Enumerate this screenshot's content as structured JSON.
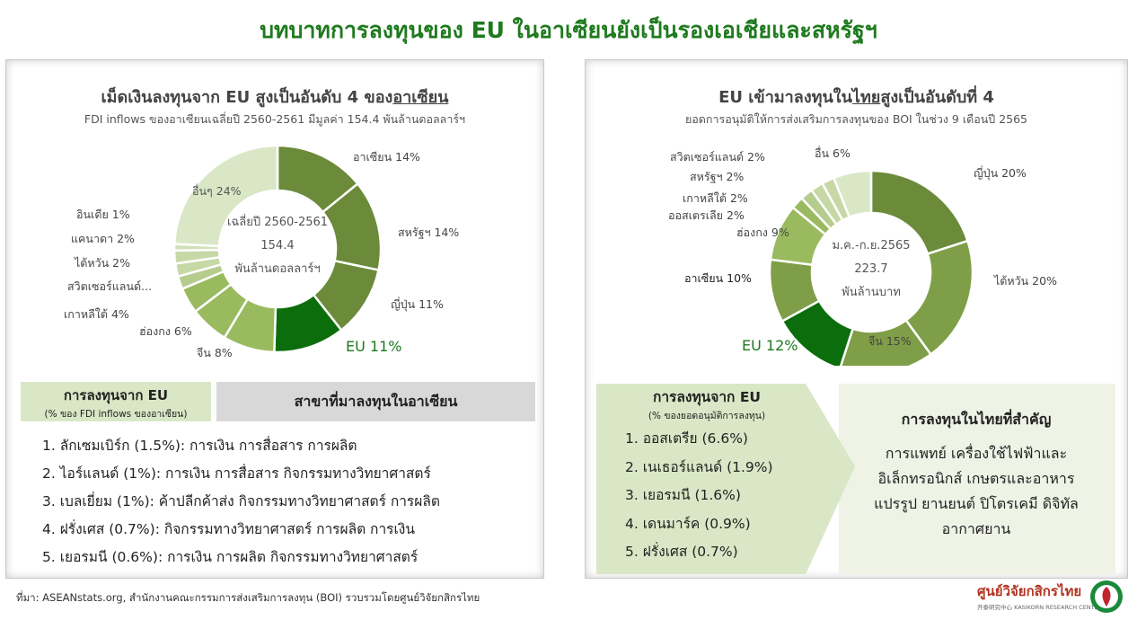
{
  "main_title": "บทบาทการลงทุนของ EU ในอาเซียนยังเป็นรองเอเชียและสหรัฐฯ",
  "left": {
    "title_pre": "เม็ดเงินลงทุนจาก EU สูงเป็นอันดับ 4 ของ",
    "title_underline": "อาเซียน",
    "subtitle": "FDI inflows ของอาเซียนเฉลี่ยปี 2560-2561  มีมูลค่า 154.4  พันล้านดอลลาร์ฯ",
    "center_lines": [
      "เฉลี่ยปี 2560-2561",
      "154.4",
      "พันล้านดอลลาร์ฯ"
    ],
    "box_green_title": "การลงทุนจาก EU",
    "box_green_sub": "(% ของ FDI inflows ของอาเซียน)",
    "box_gray_title": "สาขาที่มาลงทุนในอาเซียน",
    "branches": [
      "1. ลักเซมเบิร์ก (1.5%): การเงิน การสื่อสาร การผลิต",
      "2. ไอร์แลนด์ (1%): การเงิน การสื่อสาร กิจกรรมทางวิทยาศาสตร์",
      "3. เบลเยี่ยม (1%): ค้าปลีกค้าส่ง กิจกรรมทางวิทยาศาสตร์ การผลิต",
      "4. ฝรั่งเศส (0.7%): กิจกรรมทางวิทยาศาสตร์ การผลิต การเงิน",
      "5. เยอรมนี (0.6%): การเงิน การผลิต กิจกรรมทางวิทยาศาสตร์"
    ]
  },
  "right": {
    "title_pre": "EU เข้ามาลงทุนใน",
    "title_underline": "ไทย",
    "title_post": "สูงเป็นอันดับที่ 4",
    "subtitle": "ยอดการอนุมัติให้การส่งเสริมการลงทุนของ  BOI ในช่วง 9 เดือนปี 2565",
    "center_lines": [
      "ม.ค.-ก.ย.2565",
      "223.7",
      "พันล้านบาท"
    ],
    "box_green_title": "การลงทุนจาก EU",
    "box_green_sub": "(% ของยอดอนุมัติการลงทุน)",
    "eu_list": [
      "1. ออสเตรีย (6.6%)",
      "2. เนเธอร์แลนด์ (1.9%)",
      "3. เยอรมนี (1.6%)",
      "4. เดนมาร์ค (0.9%)",
      "5. ฝรั่งเศส (0.7%)"
    ],
    "key_title": "การลงทุนในไทยที่สำคัญ",
    "key_lines": [
      "การแพทย์ เครื่องใช้ไฟฟ้าและ",
      "อิเล็กทรอนิกส์ เกษตรและอาหาร",
      "แปรรูป ยานยนต์ ปิโตรเคมี ดิจิทัล",
      "อากาศยาน"
    ]
  },
  "source": "ที่มา: ASEANstats.org, สำนักงานคณะกรรมการส่งเสริมการลงทุน (BOI) รวบรวมโดยศูนย์วิจัยกสิกรไทย",
  "logo_text": "ศูนย์วิจัยกสิกรไทย",
  "logo_sub": "开泰研究中心  KASIKORN RESEARCH CENTER",
  "colors": {
    "title_green": "#1e7a1e",
    "eu_highlight": "#0b6d0b",
    "eu_label": "#1b7a1b",
    "dark": "#6b8a3a",
    "mid": "#7f9e48",
    "light": "#9aba60",
    "pale": "#d9e7c6",
    "gray_box": "#d8d8d8",
    "logo_red": "#b2321f"
  },
  "chart_data": [
    {
      "type": "pie",
      "variant": "donut",
      "title": "เม็ดเงินลงทุนจาก EU สูงเป็นอันดับ 4 ของอาเซียน",
      "categories": [
        "อาเซียน",
        "สหรัฐฯ",
        "ญี่ปุ่น",
        "EU",
        "จีน",
        "ฮ่องกง",
        "เกาหลีใต้",
        "สวิตเซอร์แลนด์...",
        "ไต้หวัน",
        "แคนาดา",
        "อินเดีย",
        "อื่นๆ"
      ],
      "values": [
        14,
        14,
        11,
        11,
        8,
        6,
        4,
        2,
        2,
        2,
        1,
        24
      ],
      "labels": [
        "อาเซียน 14%",
        "สหรัฐฯ 14%",
        "ญี่ปุ่น 11%",
        "EU 11%",
        "จีน 8%",
        "ฮ่องกง 6%",
        "เกาหลีใต้ 4%",
        "สวิตเซอร์แลนด์...",
        "ไต้หวัน 2%",
        "แคนาดา 2%",
        "อินเดีย 1%",
        "อื่นๆ 24%"
      ],
      "colors": [
        "#6b8a3a",
        "#6b8a3a",
        "#6b8a3a",
        "#0b6d0b",
        "#9aba60",
        "#9aba60",
        "#9aba60",
        "#b5cc8e",
        "#c6d8a6",
        "#c6d8a6",
        "#d2e0b8",
        "#d9e7c6"
      ],
      "highlight": "EU"
    },
    {
      "type": "pie",
      "variant": "donut",
      "title": "EU เข้ามาลงทุนในไทยสูงเป็นอันดับที่ 4",
      "categories": [
        "ญี่ปุ่น",
        "ไต้หวัน",
        "จีน",
        "EU",
        "อาเซียน",
        "ฮ่องกง",
        "ออสเตรเลีย",
        "เกาหลีใต้",
        "สหรัฐฯ",
        "สวิตเซอร์แลนด์",
        "อื่น"
      ],
      "values": [
        20,
        20,
        15,
        12,
        10,
        9,
        2,
        2,
        2,
        2,
        6
      ],
      "labels": [
        "ญี่ปุ่น 20%",
        "ไต้หวัน 20%",
        "จีน 15%",
        "EU 12%",
        "อาเซียน 10%",
        "ฮ่องกง 9%",
        "ออสเตรเลีย 2%",
        "เกาหลีใต้ 2%",
        "สหรัฐฯ 2%",
        "สวิตเซอร์แลนด์ 2%",
        "อื่น 6%"
      ],
      "colors": [
        "#6b8a3a",
        "#7f9e48",
        "#7f9e48",
        "#0b6d0b",
        "#7f9e48",
        "#9aba60",
        "#9aba60",
        "#b5cc8e",
        "#c6d8a6",
        "#c6d8a6",
        "#d9e7c6"
      ],
      "highlight": "EU"
    }
  ]
}
